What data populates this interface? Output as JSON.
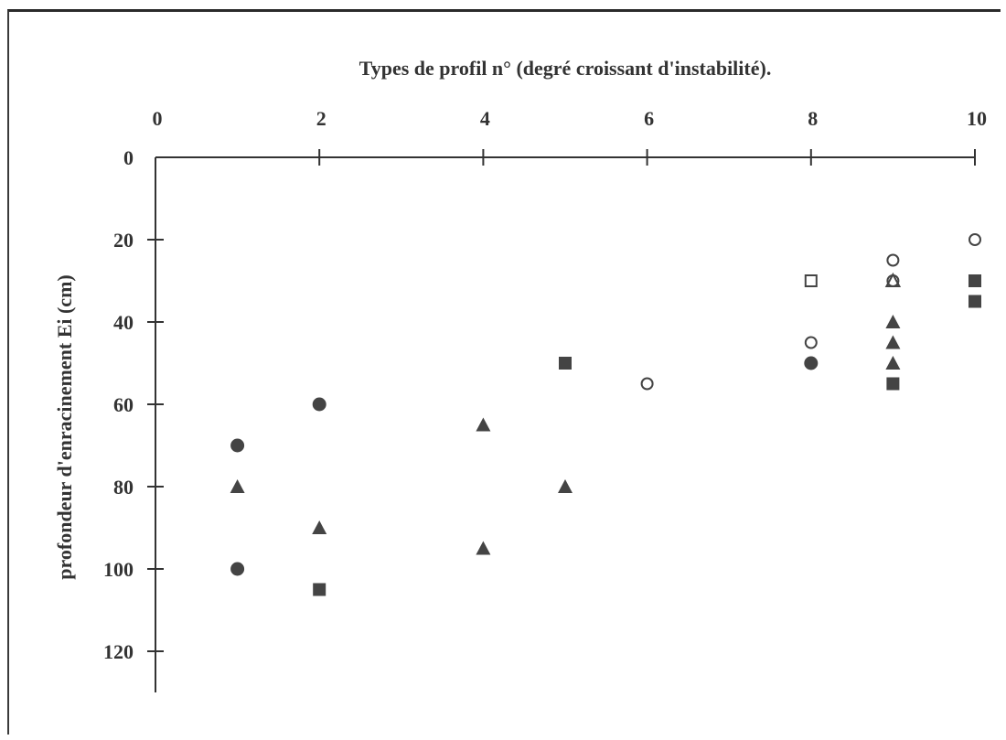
{
  "chart_data": {
    "type": "scatter",
    "title": "",
    "xlabel": "Types de profil n° (degré croissant d'instabilité).",
    "ylabel": "profondeur d'enracinement Ei (cm)",
    "x_ticks": [
      "0",
      "2",
      "4",
      "6",
      "8",
      "10"
    ],
    "y_ticks": [
      "0",
      "20",
      "40",
      "60",
      "80",
      "100",
      "120"
    ],
    "xlim": [
      0,
      10
    ],
    "ylim": [
      0,
      130
    ],
    "y_inverted": true,
    "x_axis_position": "top",
    "grid": false,
    "marker_color": "#444444",
    "series": [
      {
        "marker": "filled-circle",
        "points": [
          {
            "x": 1,
            "y": 70
          },
          {
            "x": 1,
            "y": 100
          },
          {
            "x": 2,
            "y": 60
          },
          {
            "x": 8,
            "y": 50
          }
        ]
      },
      {
        "marker": "filled-triangle",
        "points": [
          {
            "x": 1,
            "y": 80
          },
          {
            "x": 2,
            "y": 90
          },
          {
            "x": 4,
            "y": 65
          },
          {
            "x": 4,
            "y": 95
          },
          {
            "x": 5,
            "y": 80
          },
          {
            "x": 9,
            "y": 40
          },
          {
            "x": 9,
            "y": 45
          },
          {
            "x": 9,
            "y": 50
          }
        ]
      },
      {
        "marker": "filled-square",
        "points": [
          {
            "x": 2,
            "y": 105
          },
          {
            "x": 5,
            "y": 50
          },
          {
            "x": 9,
            "y": 55
          },
          {
            "x": 10,
            "y": 30
          },
          {
            "x": 10,
            "y": 35
          }
        ]
      },
      {
        "marker": "open-circle",
        "points": [
          {
            "x": 6,
            "y": 55
          },
          {
            "x": 8,
            "y": 45
          },
          {
            "x": 9,
            "y": 25
          },
          {
            "x": 9,
            "y": 30
          },
          {
            "x": 10,
            "y": 20
          }
        ]
      },
      {
        "marker": "open-square",
        "points": [
          {
            "x": 8,
            "y": 30
          }
        ]
      },
      {
        "marker": "open-triangle",
        "points": [
          {
            "x": 9,
            "y": 30
          }
        ]
      }
    ]
  }
}
